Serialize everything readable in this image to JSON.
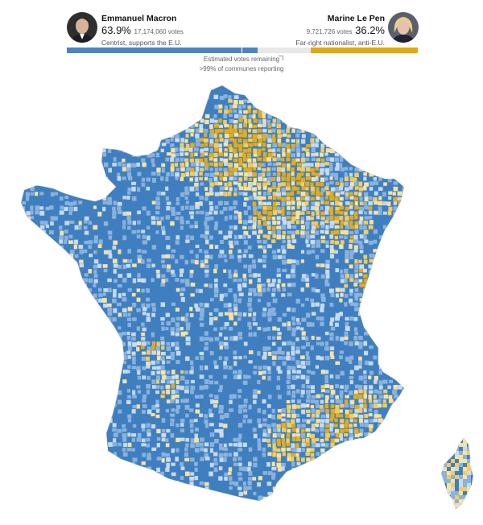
{
  "candidates": {
    "macron": {
      "name": "Emmanuel Macron",
      "pct": "63.9%",
      "votes": "17,174,060 votes",
      "desc": "Centrist, supports the E.U.",
      "color": "#4a84c4",
      "share": 0.639
    },
    "lepen": {
      "name": "Marine Le Pen",
      "pct": "36.2%",
      "votes": "9,721,726 votes",
      "desc": "Far-right nationalist, anti-E.U.",
      "color": "#e3a80f",
      "share": 0.362
    }
  },
  "progress": {
    "remaining_label": "Estimated votes remaining",
    "reporting_label": ">99% of communes reporting",
    "macron_fill": 0.543,
    "remaining_fill": 0.152,
    "lepen_fill": 0.305
  },
  "map": {
    "colors": {
      "strong_macron": "#3f7fc0",
      "lean_macron": "#8bb2dc",
      "light_macron": "#c7daef",
      "light_lepen": "#f6e2a0",
      "lean_lepen": "#f2cc5c",
      "strong_lepen": "#e5ac18"
    }
  }
}
